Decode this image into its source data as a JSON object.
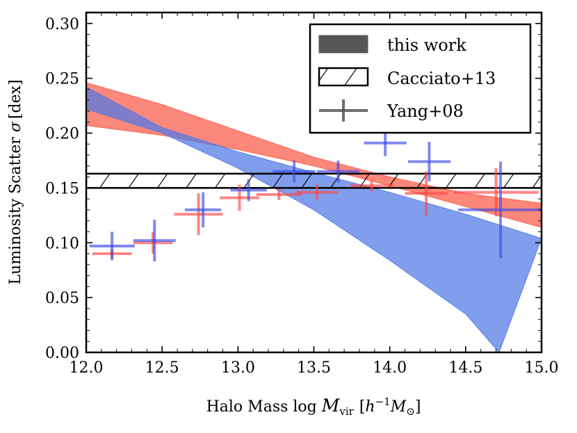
{
  "chart_data": {
    "type": "area",
    "xlabel_pre": "Halo Mass log ",
    "xlabel_var": "M",
    "xlabel_sub": "vir",
    "xlabel_unit_open": "[",
    "xlabel_unit_h": "h",
    "xlabel_unit_exp": "−1",
    "xlabel_unit_M": "M",
    "xlabel_unit_sub": "⊙",
    "xlabel_unit_close": "]",
    "ylabel_pre": "Luminosity Scatter ",
    "ylabel_sym": "σ",
    "ylabel_unit": "[dex]",
    "xlim": [
      12.0,
      15.0
    ],
    "ylim": [
      0.0,
      0.31
    ],
    "x_ticks": [
      12.0,
      12.5,
      13.0,
      13.5,
      14.0,
      14.5,
      15.0
    ],
    "x_tick_labels": [
      "12.0",
      "12.5",
      "13.0",
      "13.5",
      "14.0",
      "14.5",
      "15.0"
    ],
    "y_ticks": [
      0.0,
      0.05,
      0.1,
      0.15,
      0.2,
      0.25,
      0.3
    ],
    "y_tick_labels": [
      "0.00",
      "0.05",
      "0.10",
      "0.15",
      "0.20",
      "0.25",
      "0.30"
    ],
    "legend": {
      "position": "upper right",
      "entries": [
        {
          "label": "this work",
          "style": "filled-band",
          "color": "#444444"
        },
        {
          "label": "Cacciato+13",
          "style": "hatched-band",
          "color": "#000000"
        },
        {
          "label": "Yang+08",
          "style": "errorbar",
          "color": "#555555"
        }
      ]
    },
    "bands": [
      {
        "color": "#fa5a46",
        "upper": [
          [
            12.0,
            0.246
          ],
          [
            12.5,
            0.226
          ],
          [
            13.0,
            0.202
          ],
          [
            13.5,
            0.178
          ],
          [
            14.0,
            0.16
          ],
          [
            14.5,
            0.145
          ],
          [
            15.0,
            0.136
          ]
        ],
        "lower": [
          [
            12.0,
            0.207
          ],
          [
            12.5,
            0.198
          ],
          [
            13.0,
            0.185
          ],
          [
            13.5,
            0.17
          ],
          [
            14.0,
            0.152
          ],
          [
            14.5,
            0.133
          ],
          [
            15.0,
            0.114
          ]
        ]
      },
      {
        "color": "#5078e6",
        "upper": [
          [
            12.0,
            0.242
          ],
          [
            12.5,
            0.205
          ],
          [
            13.0,
            0.183
          ],
          [
            13.5,
            0.164
          ],
          [
            14.0,
            0.146
          ],
          [
            14.5,
            0.126
          ],
          [
            15.0,
            0.104
          ]
        ],
        "lower": [
          [
            12.0,
            0.222
          ],
          [
            12.5,
            0.2
          ],
          [
            13.0,
            0.168
          ],
          [
            13.5,
            0.13
          ],
          [
            14.0,
            0.084
          ],
          [
            14.5,
            0.035
          ],
          [
            14.72,
            0.0
          ]
        ]
      }
    ],
    "cacciato_band": [
      0.15,
      0.163
    ],
    "series": [
      {
        "color": "#ff4646",
        "points": [
          {
            "x": 12.17,
            "xerr": 0.13,
            "y": 0.09,
            "yerr": 0.004
          },
          {
            "x": 12.44,
            "xerr": 0.13,
            "y": 0.1,
            "yerr": 0.01
          },
          {
            "x": 12.74,
            "xerr": 0.16,
            "y": 0.126,
            "yerr": 0.019
          },
          {
            "x": 13.01,
            "xerr": 0.13,
            "y": 0.141,
            "yerr": 0.012
          },
          {
            "x": 13.27,
            "xerr": 0.15,
            "y": 0.144,
            "yerr": 0.005
          },
          {
            "x": 13.52,
            "xerr": 0.14,
            "y": 0.146,
            "yerr": 0.007
          },
          {
            "x": 13.88,
            "xerr": 0.14,
            "y": 0.152,
            "yerr": 0.005
          },
          {
            "x": 14.24,
            "xerr": 0.14,
            "y": 0.145,
            "yerr": 0.02
          },
          {
            "x": 14.7,
            "xerr": 0.28,
            "y": 0.146,
            "yerr": 0.022
          }
        ]
      },
      {
        "color": "#3c4ae6",
        "points": [
          {
            "x": 12.17,
            "xerr": 0.15,
            "y": 0.097,
            "yerr": 0.013
          },
          {
            "x": 12.45,
            "xerr": 0.14,
            "y": 0.102,
            "yerr": 0.019
          },
          {
            "x": 12.77,
            "xerr": 0.12,
            "y": 0.13,
            "yerr": 0.016
          },
          {
            "x": 13.07,
            "xerr": 0.12,
            "y": 0.148,
            "yerr": 0.01
          },
          {
            "x": 13.37,
            "xerr": 0.14,
            "y": 0.165,
            "yerr": 0.01
          },
          {
            "x": 13.66,
            "xerr": 0.14,
            "y": 0.165,
            "yerr": 0.01
          },
          {
            "x": 13.97,
            "xerr": 0.14,
            "y": 0.191,
            "yerr": 0.012
          },
          {
            "x": 14.26,
            "xerr": 0.14,
            "y": 0.174,
            "yerr": 0.018
          },
          {
            "x": 14.73,
            "xerr": 0.28,
            "y": 0.13,
            "yerr": 0.044
          }
        ]
      }
    ]
  }
}
